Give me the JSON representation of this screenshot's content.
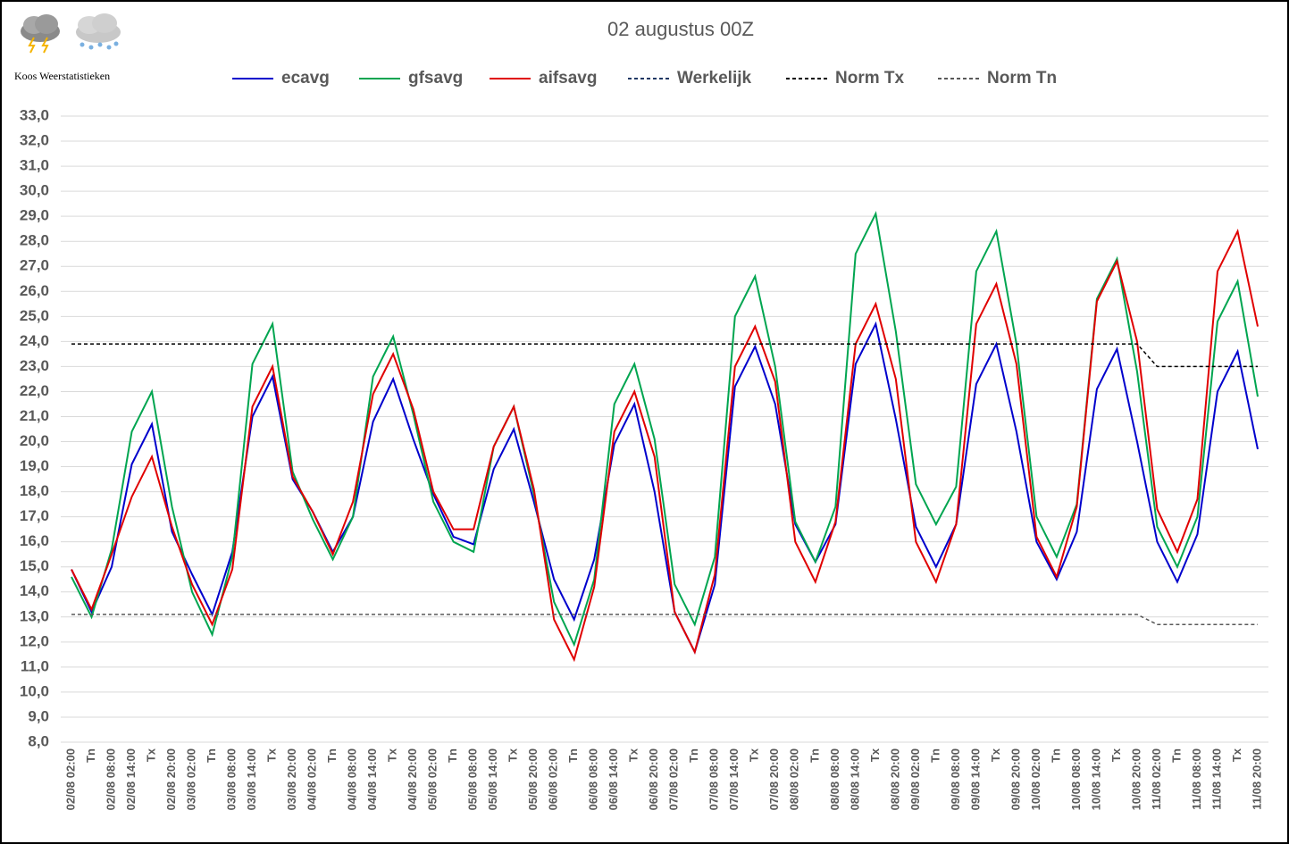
{
  "chart_data": {
    "type": "line",
    "title": "02 augustus 00Z",
    "subtitle": "Koos Weerstatistieken",
    "categories": [
      "02/08 02:00",
      "Tn",
      "02/08 08:00",
      "02/08 14:00",
      "Tx",
      "02/08 20:00",
      "03/08 02:00",
      "Tn",
      "03/08 08:00",
      "03/08 14:00",
      "Tx",
      "03/08 20:00",
      "04/08 02:00",
      "Tn",
      "04/08 08:00",
      "04/08 14:00",
      "Tx",
      "04/08 20:00",
      "05/08 02:00",
      "Tn",
      "05/08 08:00",
      "05/08 14:00",
      "Tx",
      "05/08 20:00",
      "06/08 02:00",
      "Tn",
      "06/08 08:00",
      "06/08 14:00",
      "Tx",
      "06/08 20:00",
      "07/08 02:00",
      "Tn",
      "07/08 08:00",
      "07/08 14:00",
      "Tx",
      "07/08 20:00",
      "08/08 02:00",
      "Tn",
      "08/08 08:00",
      "08/08 14:00",
      "Tx",
      "08/08 20:00",
      "09/08 02:00",
      "Tn",
      "09/08 08:00",
      "09/08 14:00",
      "Tx",
      "09/08 20:00",
      "10/08 02:00",
      "Tn",
      "10/08 08:00",
      "10/08 14:00",
      "Tx",
      "10/08 20:00",
      "11/08 02:00",
      "Tn",
      "11/08 08:00",
      "11/08 14:00",
      "Tx",
      "11/08 20:00"
    ],
    "series": [
      {
        "name": "ecavg",
        "color": "#0000cc",
        "style": "solid",
        "values": [
          14.9,
          13.2,
          15.0,
          19.1,
          20.7,
          16.4,
          14.7,
          13.1,
          15.6,
          21.0,
          22.6,
          18.5,
          17.2,
          15.6,
          17.0,
          20.8,
          22.5,
          20.1,
          17.9,
          16.2,
          15.9,
          18.9,
          20.5,
          17.6,
          14.5,
          12.9,
          15.3,
          19.9,
          21.5,
          18.0,
          13.2,
          11.6,
          14.3,
          22.2,
          23.8,
          21.5,
          16.7,
          15.2,
          16.7,
          23.1,
          24.7,
          20.9,
          16.6,
          15.0,
          16.7,
          22.3,
          23.9,
          20.4,
          16.0,
          14.5,
          16.4,
          22.1,
          23.7,
          20.0,
          16.0,
          14.4,
          16.3,
          22.0,
          23.6,
          19.7
        ]
      },
      {
        "name": "gfsavg",
        "color": "#00a550",
        "style": "solid",
        "values": [
          14.6,
          13.0,
          15.7,
          20.4,
          22.0,
          17.4,
          14.0,
          12.3,
          15.4,
          23.1,
          24.7,
          18.8,
          16.9,
          15.3,
          17.0,
          22.6,
          24.2,
          21.1,
          17.6,
          16.0,
          15.6,
          19.8,
          21.4,
          17.9,
          13.6,
          11.9,
          14.5,
          21.5,
          23.1,
          20.1,
          14.3,
          12.7,
          15.4,
          25.0,
          26.6,
          23.0,
          16.8,
          15.2,
          17.4,
          27.5,
          29.1,
          24.4,
          18.3,
          16.7,
          18.2,
          26.8,
          28.4,
          23.9,
          17.0,
          15.4,
          17.5,
          25.7,
          27.3,
          22.8,
          16.6,
          15.0,
          17.0,
          24.8,
          26.4,
          21.8
        ]
      },
      {
        "name": "aifsavg",
        "color": "#e00000",
        "style": "solid",
        "values": [
          14.9,
          13.3,
          15.5,
          17.8,
          19.4,
          16.6,
          14.3,
          12.7,
          14.9,
          21.4,
          23.0,
          18.6,
          17.2,
          15.5,
          17.6,
          21.9,
          23.5,
          21.3,
          18.0,
          16.5,
          16.5,
          19.8,
          21.4,
          18.1,
          12.9,
          11.3,
          14.2,
          20.4,
          22.0,
          19.4,
          13.2,
          11.6,
          14.7,
          23.0,
          24.6,
          22.4,
          16.0,
          14.4,
          16.8,
          23.9,
          25.5,
          22.5,
          16.0,
          14.4,
          16.7,
          24.7,
          26.3,
          23.1,
          16.2,
          14.6,
          17.4,
          25.6,
          27.2,
          24.0,
          17.3,
          15.6,
          17.7,
          26.8,
          28.4,
          24.6
        ]
      },
      {
        "name": "Werkelijk",
        "color": "#1f3864",
        "style": "dashed",
        "values": [
          null,
          null,
          null,
          null,
          null,
          null,
          null,
          null,
          null,
          null,
          null,
          null,
          null,
          null,
          null,
          null,
          null,
          null,
          null,
          null,
          null,
          null,
          null,
          null,
          null,
          null,
          null,
          null,
          null,
          null,
          null,
          null,
          null,
          null,
          null,
          null,
          null,
          null,
          null,
          null,
          null,
          null,
          null,
          null,
          null,
          null,
          null,
          null,
          null,
          null,
          null,
          null,
          null,
          null,
          null,
          null,
          null,
          null,
          null,
          null
        ]
      },
      {
        "name": "Norm Tx",
        "color": "#000000",
        "style": "dashed",
        "values": [
          23.9,
          23.9,
          23.9,
          23.9,
          23.9,
          23.9,
          23.9,
          23.9,
          23.9,
          23.9,
          23.9,
          23.9,
          23.9,
          23.9,
          23.9,
          23.9,
          23.9,
          23.9,
          23.9,
          23.9,
          23.9,
          23.9,
          23.9,
          23.9,
          23.9,
          23.9,
          23.9,
          23.9,
          23.9,
          23.9,
          23.9,
          23.9,
          23.9,
          23.9,
          23.9,
          23.9,
          23.9,
          23.9,
          23.9,
          23.9,
          23.9,
          23.9,
          23.9,
          23.9,
          23.9,
          23.9,
          23.9,
          23.9,
          23.9,
          23.9,
          23.9,
          23.9,
          23.9,
          23.9,
          23.0,
          23.0,
          23.0,
          23.0,
          23.0,
          23.0
        ]
      },
      {
        "name": "Norm Tn",
        "color": "#595959",
        "style": "dashed",
        "values": [
          13.1,
          13.1,
          13.1,
          13.1,
          13.1,
          13.1,
          13.1,
          13.1,
          13.1,
          13.1,
          13.1,
          13.1,
          13.1,
          13.1,
          13.1,
          13.1,
          13.1,
          13.1,
          13.1,
          13.1,
          13.1,
          13.1,
          13.1,
          13.1,
          13.1,
          13.1,
          13.1,
          13.1,
          13.1,
          13.1,
          13.1,
          13.1,
          13.1,
          13.1,
          13.1,
          13.1,
          13.1,
          13.1,
          13.1,
          13.1,
          13.1,
          13.1,
          13.1,
          13.1,
          13.1,
          13.1,
          13.1,
          13.1,
          13.1,
          13.1,
          13.1,
          13.1,
          13.1,
          13.1,
          12.7,
          12.7,
          12.7,
          12.7,
          12.7,
          12.7
        ]
      }
    ],
    "ylim": [
      8,
      33
    ],
    "yticks": [
      {
        "value": 8,
        "label": "8,0"
      },
      {
        "value": 9,
        "label": "9,0"
      },
      {
        "value": 10,
        "label": "10,0"
      },
      {
        "value": 11,
        "label": "11,0"
      },
      {
        "value": 12,
        "label": "12,0"
      },
      {
        "value": 13,
        "label": "13,0"
      },
      {
        "value": 14,
        "label": "14,0"
      },
      {
        "value": 15,
        "label": "15,0"
      },
      {
        "value": 16,
        "label": "16,0"
      },
      {
        "value": 17,
        "label": "17,0"
      },
      {
        "value": 18,
        "label": "18,0"
      },
      {
        "value": 19,
        "label": "19,0"
      },
      {
        "value": 20,
        "label": "20,0"
      },
      {
        "value": 21,
        "label": "21,0"
      },
      {
        "value": 22,
        "label": "22,0"
      },
      {
        "value": 23,
        "label": "23,0"
      },
      {
        "value": 24,
        "label": "24,0"
      },
      {
        "value": 25,
        "label": "25,0"
      },
      {
        "value": 26,
        "label": "26,0"
      },
      {
        "value": 27,
        "label": "27,0"
      },
      {
        "value": 28,
        "label": "28,0"
      },
      {
        "value": 29,
        "label": "29,0"
      },
      {
        "value": 30,
        "label": "30,0"
      },
      {
        "value": 31,
        "label": "31,0"
      },
      {
        "value": 32,
        "label": "32,0"
      },
      {
        "value": 33,
        "label": "33,0"
      }
    ],
    "grid": true,
    "legend": "top"
  }
}
